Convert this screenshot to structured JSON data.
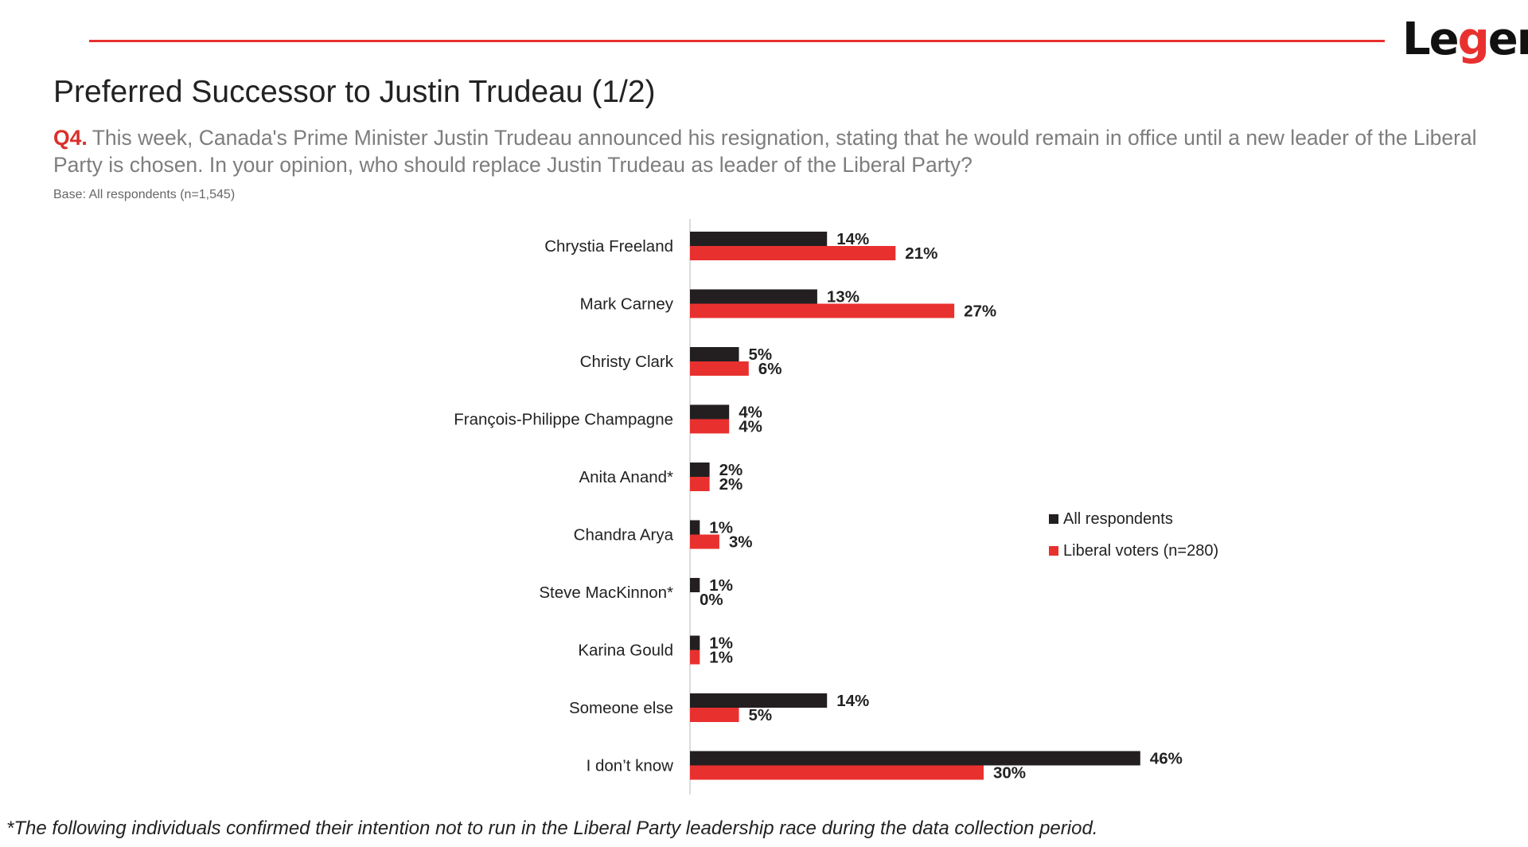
{
  "logo": {
    "pre": "Le",
    "g": "g",
    "post": "er"
  },
  "title": "Preferred Successor to Justin Trudeau (1/2)",
  "question": {
    "number": "Q4.",
    "text": "This week, Canada's Prime Minister Justin Trudeau announced his resignation, stating that he would remain in office until a new leader of the Liberal Party is chosen. In your opinion, who should replace Justin Trudeau as leader of the Liberal Party?"
  },
  "base": "Base: All respondents (n=1,545)",
  "footnote": "*The following individuals confirmed their intention not to run in the Liberal Party leadership race during the data collection period.",
  "colors": {
    "all": "#231f20",
    "liberal": "#e8312f",
    "accent": "#e8312f"
  },
  "chart_data": {
    "type": "bar",
    "orientation": "horizontal",
    "categories": [
      "Chrystia Freeland",
      "Mark Carney",
      "Christy Clark",
      "François-Philippe Champagne",
      "Anita Anand*",
      "Chandra Arya",
      "Steve MacKinnon*",
      "Karina Gould",
      "Someone else",
      "I don’t know"
    ],
    "series": [
      {
        "name": "All respondents",
        "values": [
          14,
          13,
          5,
          4,
          2,
          1,
          1,
          1,
          14,
          46
        ],
        "labels": [
          "14%",
          "13%",
          "5%",
          "4%",
          "2%",
          "1%",
          "1%",
          "1%",
          "14%",
          "46%"
        ]
      },
      {
        "name": "Liberal voters (n=280)",
        "values": [
          21,
          27,
          6,
          4,
          2,
          3,
          0,
          1,
          5,
          30
        ],
        "labels": [
          "21%",
          "27%",
          "6%",
          "4%",
          "2%",
          "3%",
          "0%",
          "1%",
          "5%",
          "30%"
        ]
      }
    ],
    "legend_position": "right",
    "grid": false
  }
}
